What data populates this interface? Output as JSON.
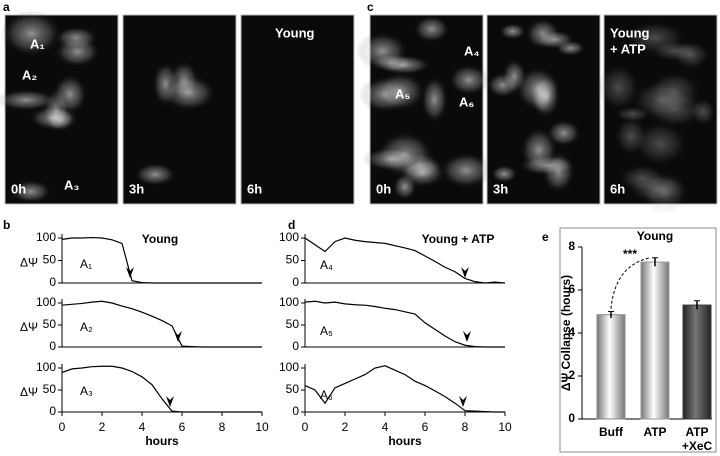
{
  "panel_letters": [
    "a",
    "b",
    "c",
    "d",
    "e"
  ],
  "image_panels": [
    {
      "frames": [
        {
          "time": "0h",
          "labels": [
            "A₁",
            "A₂",
            "A₃"
          ]
        },
        {
          "time": "3h",
          "labels": []
        },
        {
          "time": "6h",
          "labels": [],
          "title": [
            "Young"
          ]
        }
      ]
    },
    {
      "frames": [
        {
          "time": "0h",
          "labels": [
            "A₄",
            "A₅",
            "A₆"
          ]
        },
        {
          "time": "3h",
          "labels": []
        },
        {
          "time": "6h",
          "labels": [],
          "title": [
            "Young",
            "+ ATP"
          ]
        }
      ]
    }
  ],
  "chart_data": [
    {
      "type": "line",
      "title": "Young",
      "ylabel": "ΔΨ",
      "annotation": "A₁",
      "color": "#000",
      "x": [
        0,
        0.5,
        1,
        1.5,
        2,
        2.5,
        3,
        3.5,
        4,
        4.5,
        5,
        5.5,
        6,
        6.5,
        7,
        7.5,
        8,
        8.5,
        9,
        9.5,
        10
      ],
      "values": [
        97,
        100,
        100,
        101,
        100,
        96,
        88,
        5,
        1,
        0,
        0,
        0,
        0,
        0,
        0,
        0,
        0,
        0,
        0,
        0,
        0
      ],
      "arrow_x": 3.4,
      "xlim": [
        0,
        10
      ],
      "ylim": [
        0,
        100
      ],
      "yticks": [
        0,
        50,
        100
      ]
    },
    {
      "type": "line",
      "ylabel": "ΔΨ",
      "annotation": "A₂",
      "color": "#000",
      "x": [
        0,
        0.5,
        1,
        1.5,
        2,
        2.5,
        3,
        3.5,
        4,
        4.5,
        5,
        5.5,
        6,
        6.5,
        7,
        7.5,
        8,
        8.5,
        9,
        9.5,
        10
      ],
      "values": [
        95,
        97,
        99,
        102,
        104,
        100,
        93,
        87,
        79,
        70,
        60,
        48,
        2,
        1,
        0,
        0,
        0,
        0,
        0,
        0,
        0
      ],
      "arrow_x": 5.8,
      "xlim": [
        0,
        10
      ],
      "ylim": [
        0,
        100
      ],
      "yticks": [
        0,
        50,
        100
      ]
    },
    {
      "type": "line",
      "ylabel": "ΔΨ",
      "annotation": "A₃",
      "color": "#000",
      "xlabel": "hours",
      "x": [
        0,
        0.5,
        1,
        1.5,
        2,
        2.5,
        3,
        3.5,
        4,
        4.5,
        5,
        5.5,
        6,
        6.5,
        7,
        7.5,
        8,
        8.5,
        9,
        9.5,
        10
      ],
      "values": [
        90,
        98,
        100,
        103,
        104,
        104,
        100,
        92,
        80,
        62,
        30,
        2,
        0,
        0,
        0,
        0,
        0,
        0,
        0,
        0,
        0
      ],
      "arrow_x": 5.4,
      "xlim": [
        0,
        10
      ],
      "xticks": [
        0,
        2,
        4,
        6,
        8,
        10
      ],
      "ylim": [
        0,
        100
      ],
      "yticks": [
        0,
        50,
        100
      ]
    },
    {
      "type": "line",
      "title": "Young + ATP",
      "annotation": "A₄",
      "color": "#000",
      "x": [
        0,
        0.5,
        1,
        1.5,
        2,
        2.5,
        3,
        3.5,
        4,
        4.5,
        5,
        5.5,
        6,
        6.5,
        7,
        7.5,
        8,
        8.5,
        9,
        9.5,
        10
      ],
      "values": [
        100,
        85,
        70,
        92,
        100,
        95,
        92,
        90,
        88,
        83,
        78,
        72,
        60,
        48,
        35,
        25,
        10,
        3,
        0,
        2,
        0
      ],
      "arrow_x": 8.0,
      "xlim": [
        0,
        10
      ],
      "ylim": [
        0,
        100
      ],
      "yticks": [
        0,
        50,
        100
      ]
    },
    {
      "type": "line",
      "annotation": "A₅",
      "color": "#000",
      "x": [
        0,
        0.5,
        1,
        1.5,
        2,
        2.5,
        3,
        3.5,
        4,
        4.5,
        5,
        5.5,
        6,
        6.5,
        7,
        7.5,
        8,
        8.5,
        9,
        9.5,
        10
      ],
      "values": [
        102,
        104,
        100,
        102,
        98,
        96,
        95,
        92,
        88,
        85,
        80,
        75,
        55,
        40,
        25,
        12,
        4,
        1,
        0,
        0,
        0
      ],
      "arrow_x": 8.1,
      "xlim": [
        0,
        10
      ],
      "ylim": [
        0,
        100
      ],
      "yticks": [
        0,
        50,
        100
      ]
    },
    {
      "type": "line",
      "annotation": "A₆",
      "color": "#000",
      "xlabel": "hours",
      "x": [
        0,
        0.5,
        1,
        1.5,
        2,
        2.5,
        3,
        3.5,
        4,
        4.5,
        5,
        5.5,
        6,
        6.5,
        7,
        7.5,
        8,
        8.5,
        9,
        9.5,
        10
      ],
      "values": [
        60,
        50,
        20,
        55,
        65,
        75,
        85,
        100,
        105,
        95,
        85,
        70,
        60,
        48,
        35,
        20,
        3,
        2,
        1,
        0,
        0
      ],
      "arrow_x": 7.9,
      "xlim": [
        0,
        10
      ],
      "xticks": [
        0,
        2,
        4,
        6,
        8,
        10
      ],
      "ylim": [
        0,
        100
      ],
      "yticks": [
        0,
        50,
        100
      ]
    },
    {
      "type": "bar",
      "title": "Young",
      "ylabel": "ΔΨ Collapse (hours)",
      "annotation": "***",
      "categories": [
        "Buff",
        "ATP",
        "ATP\n+XeC"
      ],
      "values": [
        4.85,
        7.3,
        5.3
      ],
      "errors": [
        0.15,
        0.2,
        0.2
      ],
      "colors": [
        "#8a8a8a",
        "#9a9a9a",
        "#3a3a3a"
      ],
      "ylim": [
        0,
        8
      ],
      "yticks": [
        0,
        2,
        4,
        6,
        8
      ]
    }
  ]
}
